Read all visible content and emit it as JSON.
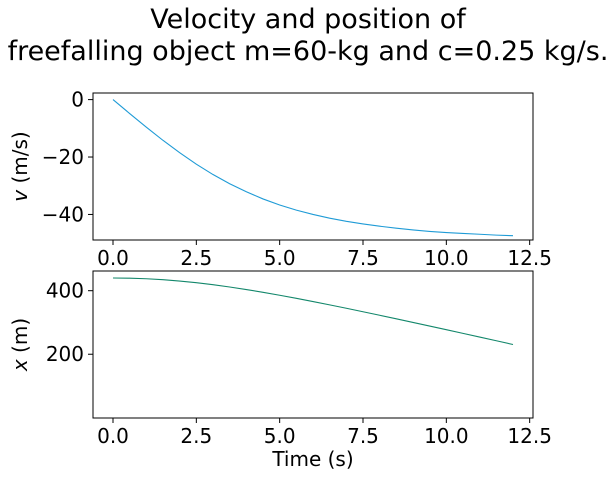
{
  "figure": {
    "title_line1": "Velocity and position of",
    "title_line2": "freefalling object m=60-kg and c=0.25 kg/s."
  },
  "chart_data": [
    {
      "type": "line",
      "xlabel": "",
      "ylabel": "v (m/s)",
      "ylabel_italic_part": "v",
      "ylabel_rest": " (m/s)",
      "xlim": [
        -0.6,
        12.6
      ],
      "ylim": [
        -48.9,
        2.3
      ],
      "xticks": [
        0.0,
        2.5,
        5.0,
        7.5,
        10.0,
        12.5
      ],
      "xtick_labels": [
        "0.0",
        "2.5",
        "5.0",
        "7.5",
        "10.0",
        "12.5"
      ],
      "yticks": [
        0,
        -20,
        -40
      ],
      "ytick_labels": [
        "0",
        "−20",
        "−40"
      ],
      "grid": false,
      "series": [
        {
          "color": "#1f9bd6",
          "x": [
            0,
            0.5,
            1,
            1.5,
            2,
            2.5,
            3,
            3.5,
            4,
            4.5,
            5,
            5.5,
            6,
            6.5,
            7,
            7.5,
            8,
            8.5,
            9,
            9.5,
            10,
            10.5,
            11,
            11.5,
            12
          ],
          "y": [
            0,
            -4.85,
            -9.6,
            -14.2,
            -18.5,
            -22.5,
            -26.1,
            -29.3,
            -32.1,
            -34.6,
            -36.7,
            -38.5,
            -40.0,
            -41.3,
            -42.4,
            -43.3,
            -44.1,
            -44.8,
            -45.4,
            -45.9,
            -46.3,
            -46.6,
            -46.9,
            -47.2,
            -47.4
          ]
        }
      ]
    },
    {
      "type": "line",
      "xlabel": "Time (s)",
      "ylabel": "x (m)",
      "ylabel_italic_part": "x",
      "ylabel_rest": " (m)",
      "xlim": [
        -0.6,
        12.6
      ],
      "ylim": [
        -0.7,
        462
      ],
      "xticks": [
        0.0,
        2.5,
        5.0,
        7.5,
        10.0,
        12.5
      ],
      "xtick_labels": [
        "0.0",
        "2.5",
        "5.0",
        "7.5",
        "10.0",
        "12.5"
      ],
      "yticks": [
        200,
        400
      ],
      "ytick_labels": [
        "200",
        "400"
      ],
      "grid": false,
      "series": [
        {
          "color": "#13876b",
          "x": [
            0,
            0.5,
            1,
            1.5,
            2,
            2.5,
            3,
            3.5,
            4,
            4.5,
            5,
            5.5,
            6,
            6.5,
            7,
            7.5,
            8,
            8.5,
            9,
            9.5,
            10,
            10.5,
            11,
            11.5,
            12
          ],
          "y": [
            440,
            439.4,
            437.6,
            434.6,
            430.4,
            425.2,
            418.9,
            411.6,
            403.6,
            394.9,
            385.6,
            375.9,
            365.8,
            355.4,
            344.7,
            333.8,
            322.7,
            311.5,
            300.2,
            288.8,
            277.2,
            265.6,
            254.0,
            242.4,
            230.6
          ]
        }
      ]
    }
  ]
}
